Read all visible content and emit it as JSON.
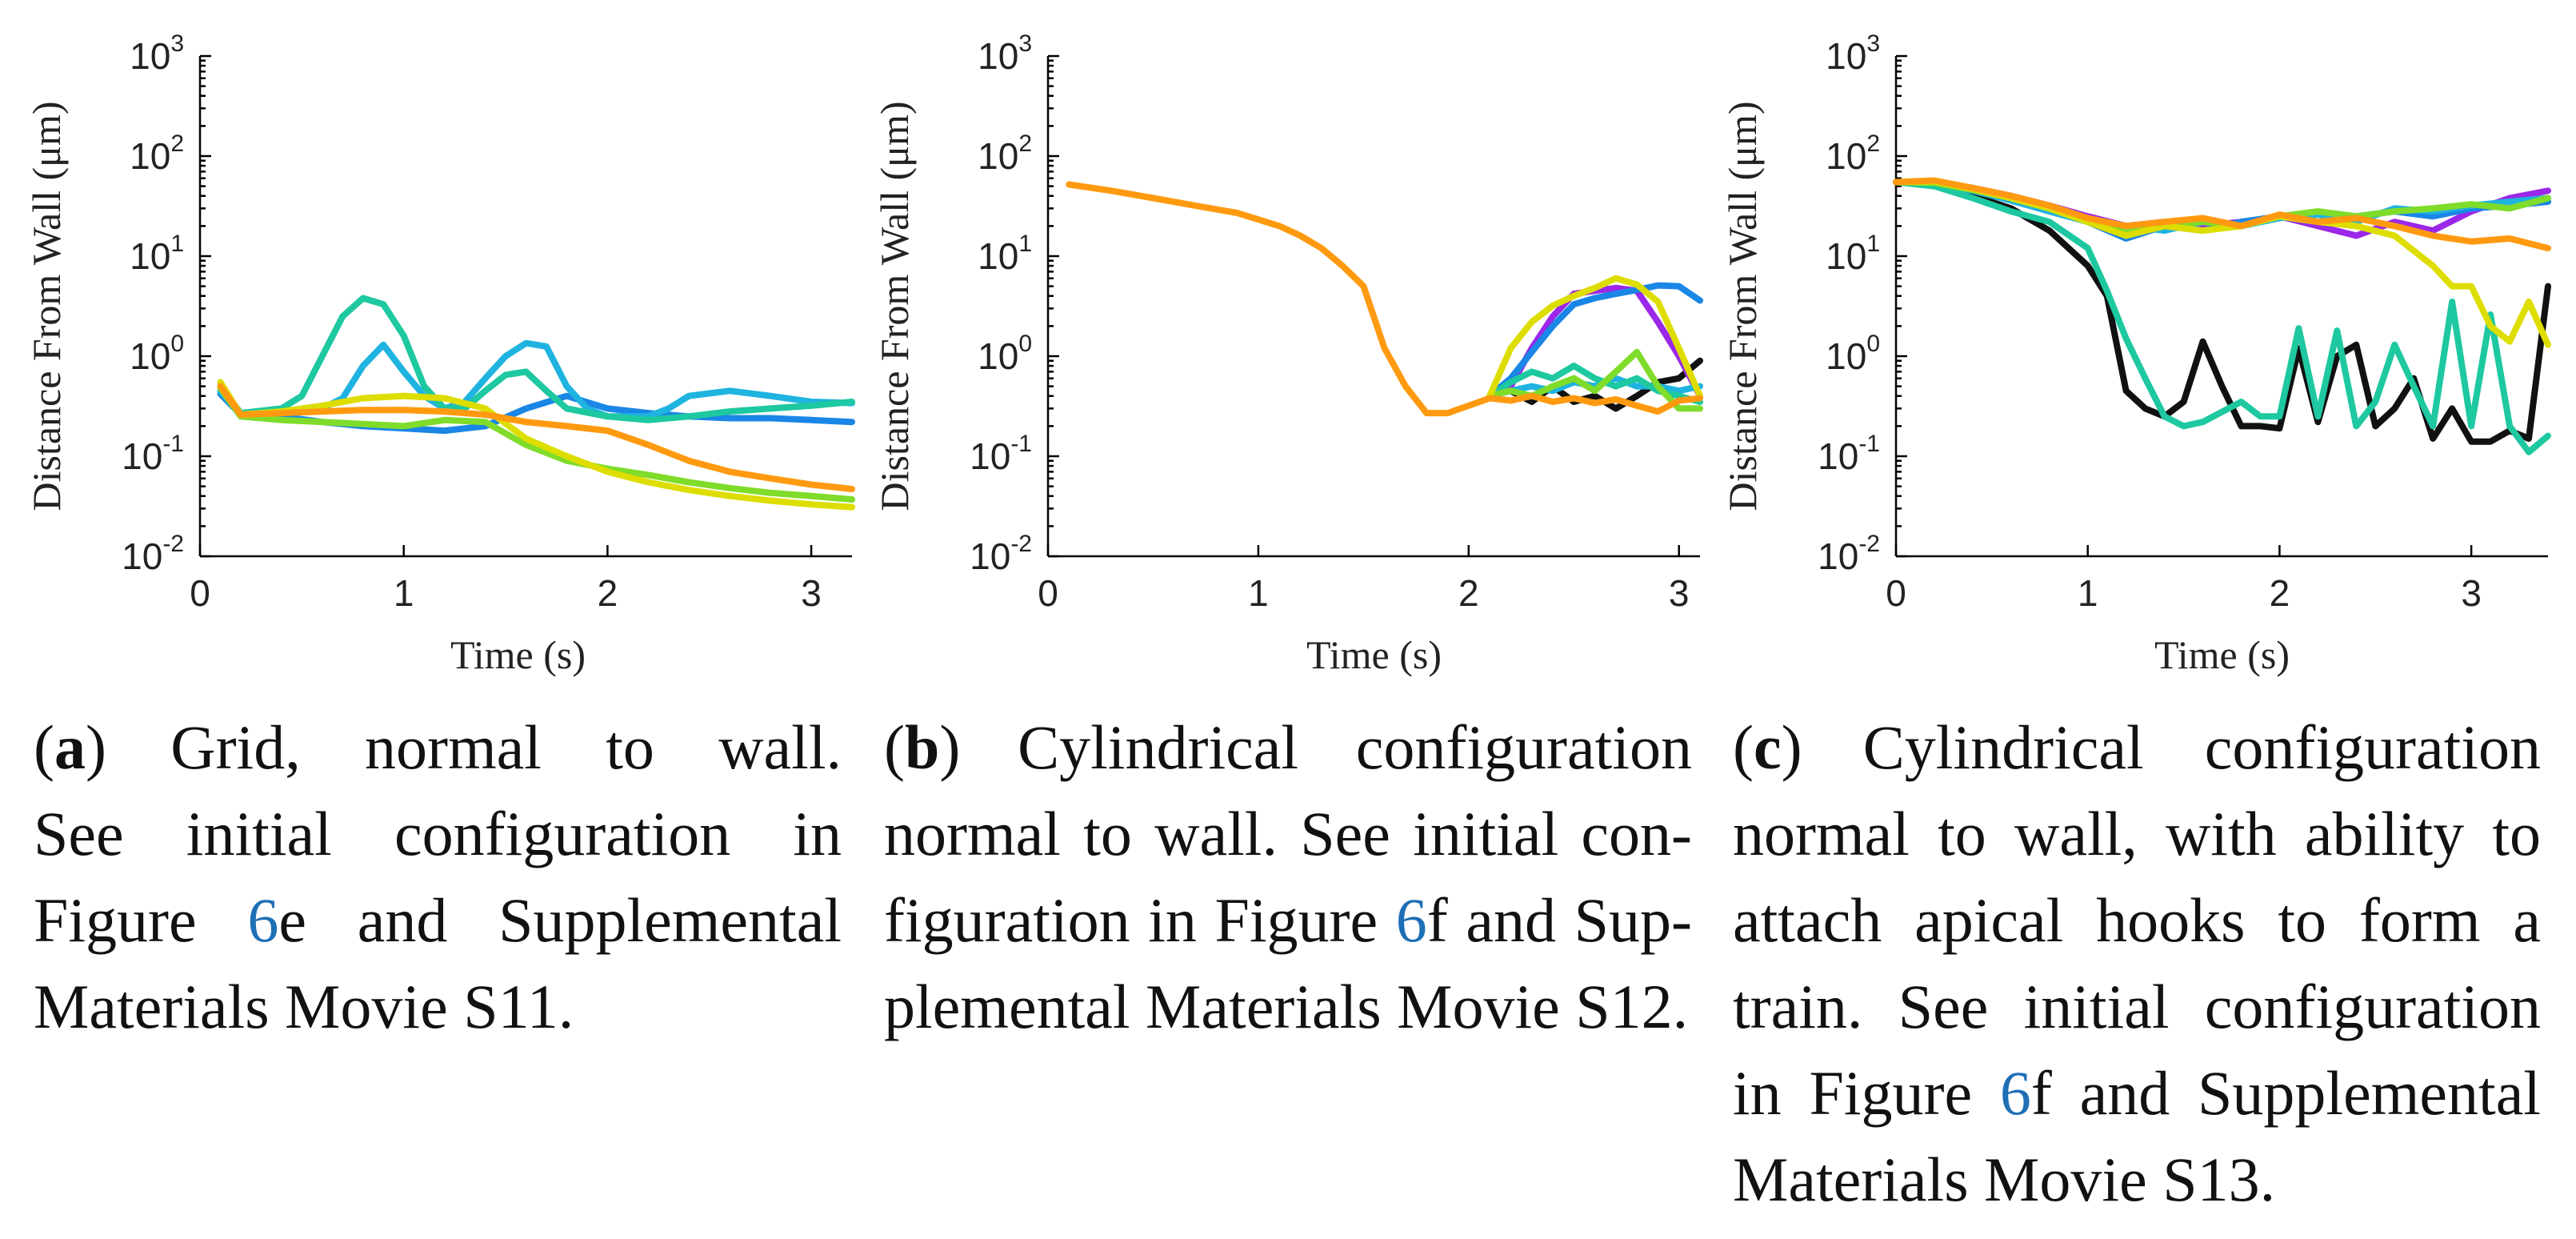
{
  "chart_data": [
    {
      "type": "line",
      "panel": "a",
      "xlabel": "Time (s)",
      "ylabel": "Distance From Wall (μm)",
      "xlim": [
        0,
        3.2
      ],
      "ylim": [
        0.01,
        1000
      ],
      "yscale": "log",
      "xticks": [
        "0",
        "1",
        "2",
        "3"
      ],
      "yticks": [
        {
          "base": "10",
          "exp": "-2"
        },
        {
          "base": "10",
          "exp": "-1"
        },
        {
          "base": "10",
          "exp": "0"
        },
        {
          "base": "10",
          "exp": "1"
        },
        {
          "base": "10",
          "exp": "2"
        },
        {
          "base": "10",
          "exp": "3"
        }
      ],
      "series": [
        {
          "name": "blue",
          "color": "#1a86e6",
          "x": [
            0.1,
            0.2,
            0.4,
            0.6,
            0.8,
            1.0,
            1.2,
            1.4,
            1.6,
            1.8,
            2.0,
            2.2,
            2.4,
            2.6,
            2.8,
            3.0,
            3.2
          ],
          "y": [
            0.42,
            0.26,
            0.25,
            0.22,
            0.2,
            0.19,
            0.18,
            0.2,
            0.3,
            0.4,
            0.3,
            0.27,
            0.25,
            0.24,
            0.24,
            0.23,
            0.22
          ]
        },
        {
          "name": "cyan",
          "color": "#1fb3e0",
          "x": [
            0.1,
            0.2,
            0.4,
            0.6,
            0.7,
            0.8,
            0.9,
            1.0,
            1.1,
            1.2,
            1.3,
            1.4,
            1.5,
            1.6,
            1.7,
            1.8,
            1.9,
            2.0,
            2.2,
            2.3,
            2.4,
            2.6,
            2.8,
            3.0,
            3.2
          ],
          "y": [
            0.45,
            0.27,
            0.28,
            0.3,
            0.38,
            0.8,
            1.3,
            0.7,
            0.4,
            0.3,
            0.35,
            0.6,
            1.0,
            1.35,
            1.25,
            0.5,
            0.3,
            0.25,
            0.25,
            0.3,
            0.4,
            0.45,
            0.4,
            0.35,
            0.34
          ]
        },
        {
          "name": "teal",
          "color": "#1ec8a0",
          "x": [
            0.1,
            0.2,
            0.4,
            0.5,
            0.6,
            0.7,
            0.8,
            0.9,
            1.0,
            1.1,
            1.2,
            1.3,
            1.4,
            1.5,
            1.6,
            1.7,
            1.8,
            2.0,
            2.2,
            2.4,
            2.6,
            2.8,
            3.0,
            3.2
          ],
          "y": [
            0.5,
            0.27,
            0.3,
            0.4,
            1.0,
            2.5,
            3.8,
            3.3,
            1.6,
            0.5,
            0.3,
            0.3,
            0.45,
            0.65,
            0.7,
            0.45,
            0.3,
            0.25,
            0.23,
            0.25,
            0.28,
            0.3,
            0.32,
            0.35
          ]
        },
        {
          "name": "green",
          "color": "#7fdc2a",
          "x": [
            0.1,
            0.2,
            0.4,
            0.6,
            0.8,
            1.0,
            1.2,
            1.4,
            1.6,
            1.8,
            2.0,
            2.2,
            2.4,
            2.6,
            2.8,
            3.0,
            3.2
          ],
          "y": [
            0.48,
            0.25,
            0.23,
            0.22,
            0.21,
            0.2,
            0.23,
            0.22,
            0.13,
            0.09,
            0.075,
            0.065,
            0.055,
            0.048,
            0.043,
            0.04,
            0.037
          ]
        },
        {
          "name": "yellow",
          "color": "#dddd00",
          "x": [
            0.1,
            0.2,
            0.4,
            0.6,
            0.8,
            1.0,
            1.2,
            1.4,
            1.6,
            1.8,
            2.0,
            2.2,
            2.4,
            2.6,
            2.8,
            3.0,
            3.2
          ],
          "y": [
            0.55,
            0.26,
            0.28,
            0.32,
            0.38,
            0.4,
            0.38,
            0.3,
            0.15,
            0.1,
            0.07,
            0.055,
            0.046,
            0.04,
            0.036,
            0.033,
            0.031
          ]
        },
        {
          "name": "orange",
          "color": "#ff9a10",
          "x": [
            0.1,
            0.2,
            0.4,
            0.6,
            0.8,
            1.0,
            1.2,
            1.4,
            1.6,
            1.8,
            2.0,
            2.2,
            2.4,
            2.6,
            2.8,
            3.0,
            3.2
          ],
          "y": [
            0.5,
            0.26,
            0.27,
            0.28,
            0.29,
            0.29,
            0.28,
            0.26,
            0.22,
            0.2,
            0.18,
            0.13,
            0.09,
            0.07,
            0.06,
            0.052,
            0.047
          ]
        }
      ]
    },
    {
      "type": "line",
      "panel": "b",
      "xlabel": "Time (s)",
      "ylabel": "Distance From Wall (μm)",
      "xlim": [
        0,
        3.1
      ],
      "ylim": [
        0.01,
        1000
      ],
      "yscale": "log",
      "xticks": [
        "0",
        "1",
        "2",
        "3"
      ],
      "yticks": [
        {
          "base": "10",
          "exp": "-2"
        },
        {
          "base": "10",
          "exp": "-1"
        },
        {
          "base": "10",
          "exp": "0"
        },
        {
          "base": "10",
          "exp": "1"
        },
        {
          "base": "10",
          "exp": "2"
        },
        {
          "base": "10",
          "exp": "3"
        }
      ],
      "series": [
        {
          "name": "black",
          "color": "#111111",
          "x": [
            2.1,
            2.2,
            2.3,
            2.4,
            2.5,
            2.6,
            2.7,
            2.8,
            2.9,
            3.0,
            3.1
          ],
          "y": [
            0.4,
            0.45,
            0.35,
            0.5,
            0.35,
            0.4,
            0.3,
            0.4,
            0.55,
            0.6,
            0.9
          ]
        },
        {
          "name": "purple",
          "color": "#9b27e8",
          "x": [
            2.1,
            2.2,
            2.3,
            2.4,
            2.5,
            2.6,
            2.7,
            2.8,
            2.9,
            3.0,
            3.1
          ],
          "y": [
            0.4,
            0.5,
            1.2,
            2.5,
            4.2,
            4.5,
            4.8,
            4.5,
            2.2,
            1.0,
            0.4
          ]
        },
        {
          "name": "blue",
          "color": "#1a86e6",
          "x": [
            2.1,
            2.2,
            2.3,
            2.4,
            2.5,
            2.6,
            2.7,
            2.8,
            2.9,
            3.0,
            3.1
          ],
          "y": [
            0.4,
            0.6,
            1.1,
            2.0,
            3.3,
            3.8,
            4.2,
            4.6,
            5.1,
            5.0,
            3.6
          ]
        },
        {
          "name": "cyan",
          "color": "#1fb3e0",
          "x": [
            2.1,
            2.2,
            2.3,
            2.4,
            2.5,
            2.6,
            2.7,
            2.8,
            2.9,
            3.0,
            3.1
          ],
          "y": [
            0.4,
            0.45,
            0.5,
            0.45,
            0.55,
            0.5,
            0.6,
            0.5,
            0.5,
            0.45,
            0.5
          ]
        },
        {
          "name": "teal",
          "color": "#1ec8a0",
          "x": [
            2.1,
            2.2,
            2.3,
            2.4,
            2.5,
            2.6,
            2.7,
            2.8,
            2.9,
            3.0,
            3.1
          ],
          "y": [
            0.4,
            0.55,
            0.7,
            0.6,
            0.8,
            0.6,
            0.5,
            0.6,
            0.45,
            0.4,
            0.35
          ]
        },
        {
          "name": "green",
          "color": "#7fdc2a",
          "x": [
            2.1,
            2.2,
            2.3,
            2.4,
            2.5,
            2.6,
            2.7,
            2.8,
            2.9,
            3.0,
            3.1
          ],
          "y": [
            0.4,
            0.45,
            0.4,
            0.5,
            0.6,
            0.45,
            0.7,
            1.1,
            0.5,
            0.3,
            0.3
          ]
        },
        {
          "name": "yellow",
          "color": "#dddd00",
          "x": [
            2.1,
            2.2,
            2.3,
            2.4,
            2.5,
            2.6,
            2.7,
            2.8,
            2.9,
            3.0,
            3.1
          ],
          "y": [
            0.4,
            1.2,
            2.2,
            3.2,
            4.0,
            4.8,
            6.0,
            5.2,
            3.5,
            1.2,
            0.4
          ]
        },
        {
          "name": "orange",
          "color": "#ff9a10",
          "x": [
            0.1,
            0.3,
            0.5,
            0.7,
            0.9,
            1.1,
            1.2,
            1.3,
            1.4,
            1.5,
            1.6,
            1.7,
            1.8,
            1.9,
            2.0,
            2.1,
            2.2,
            2.3,
            2.4,
            2.5,
            2.6,
            2.7,
            2.8,
            2.9,
            3.0,
            3.1
          ],
          "y": [
            52,
            45,
            38,
            32,
            27,
            20,
            16,
            12,
            8,
            5,
            1.2,
            0.5,
            0.27,
            0.27,
            0.32,
            0.38,
            0.36,
            0.4,
            0.35,
            0.38,
            0.34,
            0.37,
            0.32,
            0.28,
            0.36,
            0.38
          ]
        }
      ]
    },
    {
      "type": "line",
      "panel": "c",
      "xlabel": "Time (s)",
      "ylabel": "Distance From Wall (μm)",
      "xlim": [
        0,
        3.4
      ],
      "ylim": [
        0.01,
        1000
      ],
      "yscale": "log",
      "xticks": [
        "0",
        "1",
        "2",
        "3"
      ],
      "yticks": [
        {
          "base": "10",
          "exp": "-2"
        },
        {
          "base": "10",
          "exp": "-1"
        },
        {
          "base": "10",
          "exp": "0"
        },
        {
          "base": "10",
          "exp": "1"
        },
        {
          "base": "10",
          "exp": "2"
        },
        {
          "base": "10",
          "exp": "3"
        }
      ],
      "series": [
        {
          "name": "black",
          "color": "#111111",
          "x": [
            0.0,
            0.2,
            0.4,
            0.6,
            0.8,
            1.0,
            1.1,
            1.2,
            1.3,
            1.4,
            1.5,
            1.6,
            1.7,
            1.8,
            1.9,
            2.0,
            2.1,
            2.2,
            2.3,
            2.4,
            2.5,
            2.6,
            2.7,
            2.8,
            2.9,
            3.0,
            3.1,
            3.2,
            3.3,
            3.4
          ],
          "y": [
            55,
            52,
            40,
            30,
            18,
            8,
            4,
            0.45,
            0.3,
            0.25,
            0.35,
            1.4,
            0.5,
            0.2,
            0.2,
            0.19,
            1.2,
            0.22,
            1.0,
            1.3,
            0.2,
            0.3,
            0.6,
            0.15,
            0.3,
            0.14,
            0.14,
            0.18,
            0.15,
            5.0
          ]
        },
        {
          "name": "purple",
          "color": "#9b27e8",
          "x": [
            0.0,
            0.2,
            0.4,
            0.6,
            0.8,
            1.0,
            1.2,
            1.4,
            1.6,
            1.8,
            2.0,
            2.2,
            2.4,
            2.6,
            2.8,
            3.0,
            3.2,
            3.4
          ],
          "y": [
            55,
            55,
            48,
            40,
            32,
            25,
            20,
            22,
            20,
            22,
            25,
            20,
            16,
            22,
            18,
            28,
            38,
            45
          ]
        },
        {
          "name": "blue",
          "color": "#1a86e6",
          "x": [
            0.0,
            0.2,
            0.4,
            0.6,
            0.8,
            1.0,
            1.2,
            1.4,
            1.6,
            1.8,
            2.0,
            2.2,
            2.4,
            2.6,
            2.8,
            3.0,
            3.2,
            3.4
          ],
          "y": [
            55,
            55,
            48,
            38,
            30,
            22,
            15,
            20,
            18,
            22,
            25,
            22,
            25,
            28,
            25,
            30,
            32,
            35
          ]
        },
        {
          "name": "cyan",
          "color": "#1fb3e0",
          "x": [
            0.0,
            0.2,
            0.4,
            0.6,
            0.8,
            1.0,
            1.2,
            1.4,
            1.6,
            1.8,
            2.0,
            2.2,
            2.4,
            2.6,
            2.8,
            3.0,
            3.2,
            3.4
          ],
          "y": [
            55,
            53,
            45,
            36,
            28,
            22,
            20,
            18,
            22,
            20,
            24,
            26,
            22,
            30,
            28,
            32,
            35,
            38
          ]
        },
        {
          "name": "teal",
          "color": "#1ec8a0",
          "x": [
            0.0,
            0.2,
            0.4,
            0.6,
            0.8,
            1.0,
            1.1,
            1.2,
            1.3,
            1.4,
            1.5,
            1.6,
            1.8,
            1.9,
            2.0,
            2.1,
            2.2,
            2.3,
            2.4,
            2.5,
            2.6,
            2.7,
            2.8,
            2.9,
            3.0,
            3.1,
            3.2,
            3.3,
            3.4
          ],
          "y": [
            55,
            50,
            38,
            28,
            22,
            12,
            4.5,
            1.5,
            0.6,
            0.25,
            0.2,
            0.22,
            0.35,
            0.25,
            0.25,
            1.9,
            0.25,
            1.8,
            0.2,
            0.35,
            1.3,
            0.5,
            0.2,
            3.5,
            0.2,
            2.6,
            0.2,
            0.11,
            0.16
          ]
        },
        {
          "name": "green",
          "color": "#7fdc2a",
          "x": [
            0.0,
            0.2,
            0.4,
            0.6,
            0.8,
            1.0,
            1.2,
            1.4,
            1.6,
            1.8,
            2.0,
            2.2,
            2.4,
            2.6,
            2.8,
            3.0,
            3.2,
            3.4
          ],
          "y": [
            55,
            54,
            46,
            38,
            30,
            22,
            18,
            20,
            22,
            20,
            25,
            28,
            25,
            28,
            30,
            33,
            30,
            38
          ]
        },
        {
          "name": "yellow",
          "color": "#dddd00",
          "x": [
            0.0,
            0.2,
            0.4,
            0.6,
            0.8,
            1.0,
            1.2,
            1.4,
            1.6,
            1.8,
            2.0,
            2.2,
            2.4,
            2.6,
            2.8,
            2.9,
            3.0,
            3.1,
            3.2,
            3.3,
            3.4
          ],
          "y": [
            55,
            56,
            47,
            38,
            30,
            22,
            16,
            20,
            18,
            20,
            25,
            22,
            20,
            16,
            8,
            5,
            5,
            2.0,
            1.4,
            3.5,
            1.3
          ]
        },
        {
          "name": "orange",
          "color": "#ff9a10",
          "x": [
            0.0,
            0.2,
            0.4,
            0.6,
            0.8,
            1.0,
            1.2,
            1.4,
            1.6,
            1.8,
            2.0,
            2.2,
            2.4,
            2.6,
            2.8,
            3.0,
            3.2,
            3.4
          ],
          "y": [
            55,
            57,
            48,
            40,
            32,
            24,
            20,
            22,
            24,
            20,
            26,
            22,
            24,
            20,
            16,
            14,
            15,
            12
          ]
        }
      ]
    }
  ],
  "captions": [
    {
      "label": "a",
      "lines": [
        "Grid, normal to wall.",
        "See initial configuration in",
        "Figure ",
        "6",
        "e and Supplemental",
        "Materials Movie S11."
      ]
    },
    {
      "label": "b",
      "lines": [
        "Cylindrical configuration",
        "normal to wall. See initial con-",
        "figuration in Figure ",
        "6",
        "f and Sup-",
        "plemental Materials Movie S12."
      ]
    },
    {
      "label": "c",
      "lines": [
        "Cylindrical configuration",
        "normal to wall, with ability to",
        "attach apical hooks to form a",
        "train. See initial configuration",
        "in Figure ",
        "6",
        "f and Supplemental",
        "Materials Movie S13."
      ]
    }
  ]
}
